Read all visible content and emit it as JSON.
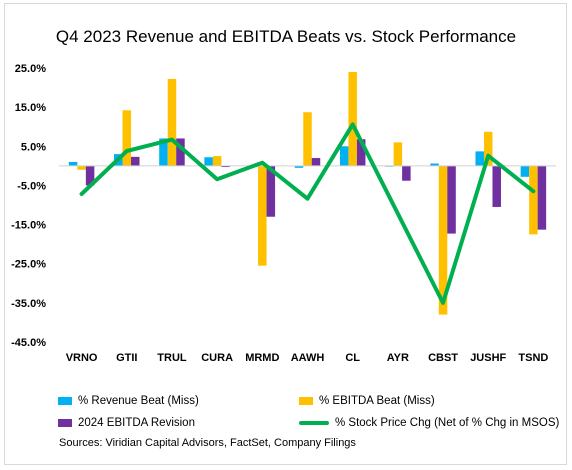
{
  "chart_data": {
    "type": "bar",
    "title": "Q4 2023 Revenue and EBITDA Beats vs. Stock Performance",
    "categories": [
      "VRNO",
      "GTII",
      "TRUL",
      "CURA",
      "MRMD",
      "AAWH",
      "CL",
      "AYR",
      "CBST",
      "JUSHF",
      "TSND"
    ],
    "ylim": [
      -45,
      25
    ],
    "yticks": [
      "25.0%",
      "15.0%",
      "5.0%",
      "-5.0%",
      "-15.0%",
      "-25.0%",
      "-35.0%",
      "-45.0%"
    ],
    "ytick_values": [
      25,
      15,
      5,
      -5,
      -15,
      -25,
      -35,
      -45
    ],
    "grid": false,
    "legend_position": "bottom",
    "series": [
      {
        "name": "% Revenue Beat (Miss)",
        "type": "bar",
        "color": "#00B0F0",
        "values": [
          1.0,
          3.0,
          7.0,
          2.2,
          0.0,
          -0.5,
          5.0,
          0.0,
          0.6,
          3.7,
          -2.8
        ]
      },
      {
        "name": "% EBITDA Beat (Miss)",
        "type": "bar",
        "color": "#FFC000",
        "values": [
          -1.0,
          14.2,
          22.2,
          2.5,
          -25.5,
          13.7,
          24.0,
          6.0,
          -38.0,
          8.7,
          -17.5
        ]
      },
      {
        "name": "2024 EBITDA Revision",
        "type": "bar",
        "color": "#7030A0",
        "values": [
          -5.0,
          2.3,
          7.0,
          -0.3,
          -13.0,
          2.0,
          6.8,
          -3.8,
          -17.3,
          -10.5,
          -16.3
        ]
      },
      {
        "name": "% Stock Price Chg (Net of % Chg in MSOS)",
        "type": "line",
        "color": "#00B050",
        "values": [
          -7.2,
          3.8,
          6.7,
          -3.4,
          0.8,
          -8.4,
          10.6,
          null,
          -35.0,
          2.6,
          -6.5
        ]
      }
    ]
  },
  "source": "Sources: Viridian Capital Advisors, FactSet, Company Filings"
}
